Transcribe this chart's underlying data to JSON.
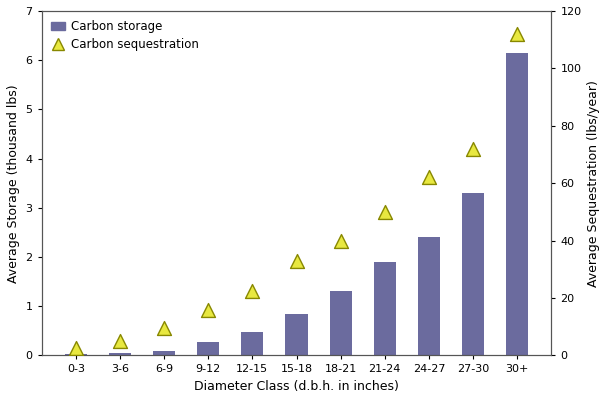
{
  "categories": [
    "0-3",
    "3-6",
    "6-9",
    "9-12",
    "12-15",
    "15-18",
    "18-21",
    "21-24",
    "24-27",
    "27-30",
    "30+"
  ],
  "carbon_storage": [
    0.02,
    0.05,
    0.1,
    0.27,
    0.48,
    0.85,
    1.3,
    1.9,
    2.4,
    3.3,
    6.15
  ],
  "carbon_sequestration": [
    2.5,
    5.0,
    9.5,
    16.0,
    22.5,
    33.0,
    40.0,
    50.0,
    62.0,
    72.0,
    112.0
  ],
  "bar_color": "#6b6b9e",
  "triangle_face_color": "#e8e840",
  "triangle_edge_color": "#888800",
  "left_ylabel": "Average Storage (thousand lbs)",
  "right_ylabel": "Average Sequestration (lbs/year)",
  "xlabel": "Diameter Class (d.b.h. in inches)",
  "ylim_left": [
    0,
    7
  ],
  "ylim_right": [
    0,
    120
  ],
  "yticks_left": [
    0,
    1,
    2,
    3,
    4,
    5,
    6,
    7
  ],
  "yticks_right": [
    0,
    20,
    40,
    60,
    80,
    100,
    120
  ],
  "legend_storage_label": "Carbon storage",
  "legend_seq_label": "Carbon sequestration",
  "background_color": "#ffffff",
  "figsize": [
    6.07,
    4.0
  ],
  "dpi": 100
}
